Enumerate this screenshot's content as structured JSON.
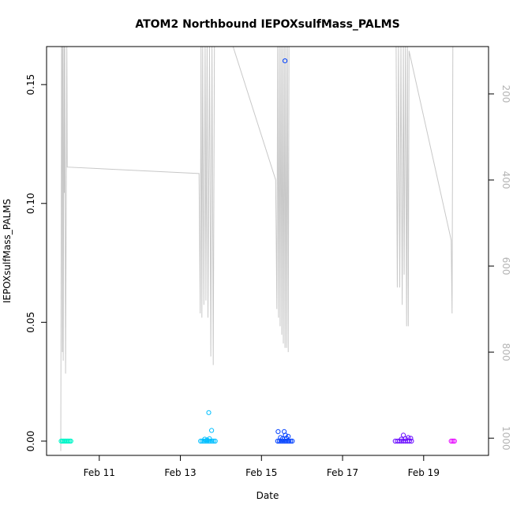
{
  "chart_data": {
    "type": "scatter",
    "title": "ATOM2 Northbound IEPOXsulfMass_PALMS",
    "xlabel": "Date",
    "ylabel": "IEPOXsulfMass_PALMS",
    "x_ticks": [
      "Feb 11",
      "Feb 13",
      "Feb 15",
      "Feb 17",
      "Feb 19"
    ],
    "x_tick_values": [
      11,
      13,
      15,
      17,
      19
    ],
    "xlim": [
      9.7,
      20.6
    ],
    "y_ticks": [
      "0.00",
      "0.05",
      "0.10",
      "0.15"
    ],
    "y_tick_values": [
      0.0,
      0.05,
      0.1,
      0.15
    ],
    "ylim": [
      -0.006,
      0.166
    ],
    "y2_ticks": [
      "200",
      "400",
      "600",
      "800",
      "1000"
    ],
    "y2_tick_values": [
      200,
      400,
      600,
      800,
      1000
    ],
    "y2lim": [
      1040,
      90
    ],
    "y2_color": "#c8c8c8",
    "grid": false,
    "series": [
      {
        "color": "#00f5c8",
        "points": [
          [
            10.06,
            0.0
          ],
          [
            10.09,
            0.0
          ],
          [
            10.12,
            0.0
          ],
          [
            10.15,
            0.0
          ],
          [
            10.18,
            0.0
          ],
          [
            10.21,
            0.0
          ],
          [
            10.24,
            0.0
          ],
          [
            10.27,
            0.0
          ],
          [
            10.3,
            0.0
          ]
        ]
      },
      {
        "color": "#00bfff",
        "points": [
          [
            13.5,
            0.0
          ],
          [
            13.54,
            0.0
          ],
          [
            13.58,
            0.0
          ],
          [
            13.62,
            0.0
          ],
          [
            13.66,
            0.0
          ],
          [
            13.7,
            0.0
          ],
          [
            13.74,
            0.0
          ],
          [
            13.78,
            0.0
          ],
          [
            13.82,
            0.0
          ],
          [
            13.86,
            0.0
          ],
          [
            13.66,
            0.0005
          ],
          [
            13.7,
            0.012
          ],
          [
            13.77,
            0.0045
          ],
          [
            13.72,
            0.001
          ],
          [
            13.6,
            0.0008
          ]
        ]
      },
      {
        "color": "#0040ff",
        "points": [
          [
            15.4,
            0.0
          ],
          [
            15.44,
            0.0
          ],
          [
            15.48,
            0.0
          ],
          [
            15.52,
            0.0
          ],
          [
            15.56,
            0.0
          ],
          [
            15.6,
            0.0
          ],
          [
            15.64,
            0.0
          ],
          [
            15.68,
            0.0
          ],
          [
            15.72,
            0.0
          ],
          [
            15.76,
            0.0
          ],
          [
            15.41,
            0.004
          ],
          [
            15.47,
            0.0015
          ],
          [
            15.58,
            0.16
          ],
          [
            15.56,
            0.004
          ],
          [
            15.59,
            0.0025
          ],
          [
            15.66,
            0.002
          ],
          [
            15.52,
            0.001
          ],
          [
            15.62,
            0.0012
          ]
        ]
      },
      {
        "color": "#6a0dff",
        "points": [
          [
            18.3,
            0.0
          ],
          [
            18.35,
            0.0
          ],
          [
            18.4,
            0.0
          ],
          [
            18.45,
            0.0
          ],
          [
            18.5,
            0.0
          ],
          [
            18.55,
            0.0
          ],
          [
            18.6,
            0.0
          ],
          [
            18.65,
            0.0
          ],
          [
            18.7,
            0.0
          ],
          [
            18.5,
            0.0025
          ],
          [
            18.55,
            0.001
          ],
          [
            18.62,
            0.0015
          ],
          [
            18.68,
            0.0012
          ],
          [
            18.45,
            0.0008
          ]
        ]
      },
      {
        "color": "#e600ff",
        "points": [
          [
            19.68,
            0.0
          ],
          [
            19.72,
            0.0
          ],
          [
            19.76,
            0.0
          ]
        ]
      }
    ],
    "secondary_line": {
      "color": "#c8c8c8",
      "points": [
        [
          10.05,
          1030
        ],
        [
          10.07,
          90
        ],
        [
          10.08,
          90
        ],
        [
          10.09,
          800
        ],
        [
          10.1,
          90
        ],
        [
          10.11,
          820
        ],
        [
          10.13,
          90
        ],
        [
          10.14,
          430
        ],
        [
          10.15,
          90
        ],
        [
          10.17,
          850
        ],
        [
          10.2,
          90
        ],
        [
          10.21,
          370
        ],
        [
          13.46,
          385
        ],
        [
          13.49,
          710
        ],
        [
          13.51,
          90
        ],
        [
          13.53,
          720
        ],
        [
          13.55,
          90
        ],
        [
          13.58,
          690
        ],
        [
          13.61,
          90
        ],
        [
          13.63,
          680
        ],
        [
          13.66,
          90
        ],
        [
          13.68,
          720
        ],
        [
          13.72,
          90
        ],
        [
          13.75,
          810
        ],
        [
          13.78,
          90
        ],
        [
          13.81,
          830
        ],
        [
          13.84,
          90
        ],
        [
          13.85,
          90
        ],
        [
          14.3,
          90
        ],
        [
          15.35,
          400
        ],
        [
          15.38,
          700
        ],
        [
          15.4,
          90
        ],
        [
          15.42,
          720
        ],
        [
          15.44,
          90
        ],
        [
          15.46,
          740
        ],
        [
          15.48,
          90
        ],
        [
          15.5,
          760
        ],
        [
          15.52,
          90
        ],
        [
          15.54,
          780
        ],
        [
          15.56,
          90
        ],
        [
          15.58,
          790
        ],
        [
          15.6,
          90
        ],
        [
          15.62,
          790
        ],
        [
          15.64,
          90
        ],
        [
          15.66,
          800
        ],
        [
          15.68,
          90
        ],
        [
          15.7,
          90
        ],
        [
          18.32,
          90
        ],
        [
          18.35,
          650
        ],
        [
          18.38,
          90
        ],
        [
          18.41,
          650
        ],
        [
          18.44,
          90
        ],
        [
          18.47,
          690
        ],
        [
          18.5,
          90
        ],
        [
          18.52,
          620
        ],
        [
          18.55,
          90
        ],
        [
          18.58,
          740
        ],
        [
          18.6,
          90
        ],
        [
          18.62,
          740
        ],
        [
          18.64,
          100
        ],
        [
          19.68,
          540
        ],
        [
          19.7,
          710
        ],
        [
          19.72,
          90
        ]
      ]
    }
  }
}
